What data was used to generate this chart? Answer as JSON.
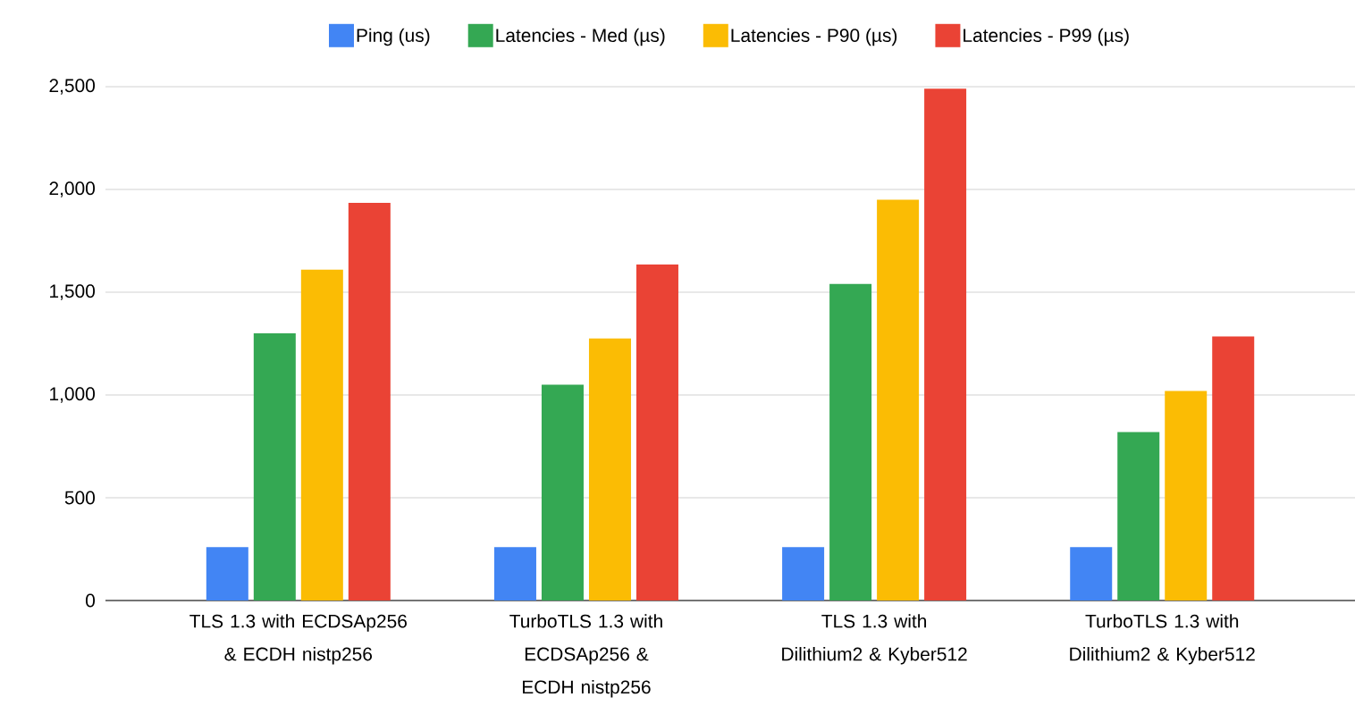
{
  "chart_data": {
    "type": "bar",
    "categories": [
      "TLS 1.3 with ECDSAp256 & ECDH nistp256",
      "TurboTLS 1.3 with ECDSAp256 & ECDH nistp256",
      "TLS 1.3 with Dilithium2 & Kyber512",
      "TurboTLS 1.3 with Dilithium2 & Kyber512"
    ],
    "series": [
      {
        "name": "Ping (us)",
        "color": "#4285f4",
        "values": [
          260,
          260,
          260,
          260
        ]
      },
      {
        "name": "Latencies - Med (µs)",
        "color": "#34a853",
        "values": [
          1300,
          1050,
          1540,
          820
        ]
      },
      {
        "name": "Latencies - P90 (µs)",
        "color": "#fbbc04",
        "values": [
          1610,
          1275,
          1950,
          1020
        ]
      },
      {
        "name": "Latencies - P99 (µs)",
        "color": "#ea4335",
        "values": [
          1935,
          1635,
          2490,
          1285
        ]
      }
    ],
    "ylim": [
      0,
      2500
    ],
    "yticks": [
      0,
      500,
      {
        "value": 1000,
        "label": "1,000"
      },
      {
        "value": 1500,
        "label": "1,500"
      },
      {
        "value": 2000,
        "label": "2,000"
      },
      {
        "value": 2500,
        "label": "2,500"
      }
    ],
    "grid": "y",
    "legend": "top"
  }
}
